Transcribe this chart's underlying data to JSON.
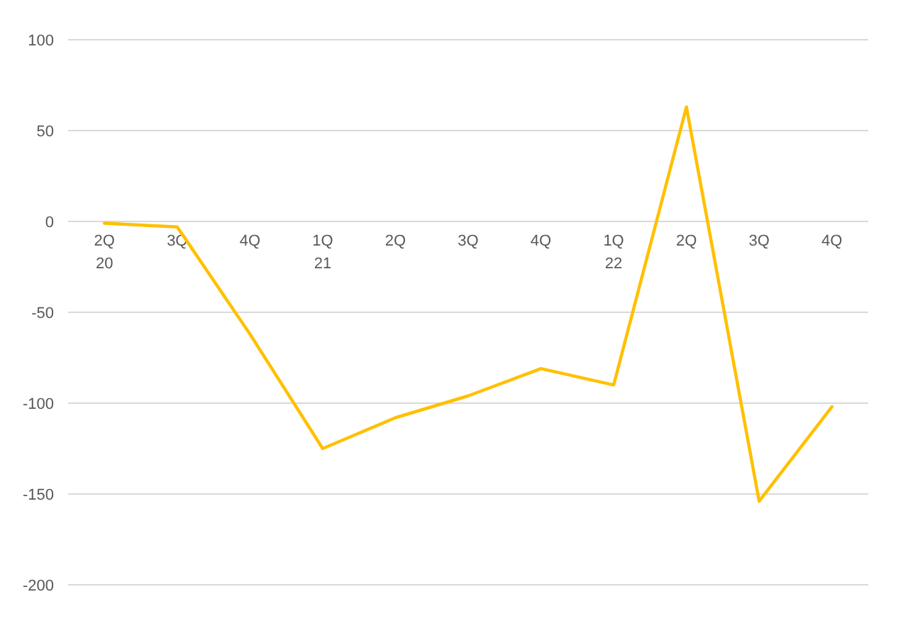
{
  "chart_data": {
    "type": "line",
    "categories": [
      "2Q\n20",
      "3Q",
      "4Q",
      "1Q\n21",
      "2Q",
      "3Q",
      "4Q",
      "1Q\n22",
      "2Q",
      "3Q",
      "4Q"
    ],
    "series": [
      {
        "color": "#ffc000",
        "values": [
          -1,
          -3,
          -62,
          -125,
          -108,
          -96,
          -81,
          -90,
          63,
          -154,
          -102
        ]
      }
    ],
    "ylim": [
      -200,
      100
    ],
    "yticks": [
      -200,
      -150,
      -100,
      -50,
      0,
      50,
      100
    ],
    "grid": "y",
    "marker": "none",
    "line_style": "solid"
  }
}
